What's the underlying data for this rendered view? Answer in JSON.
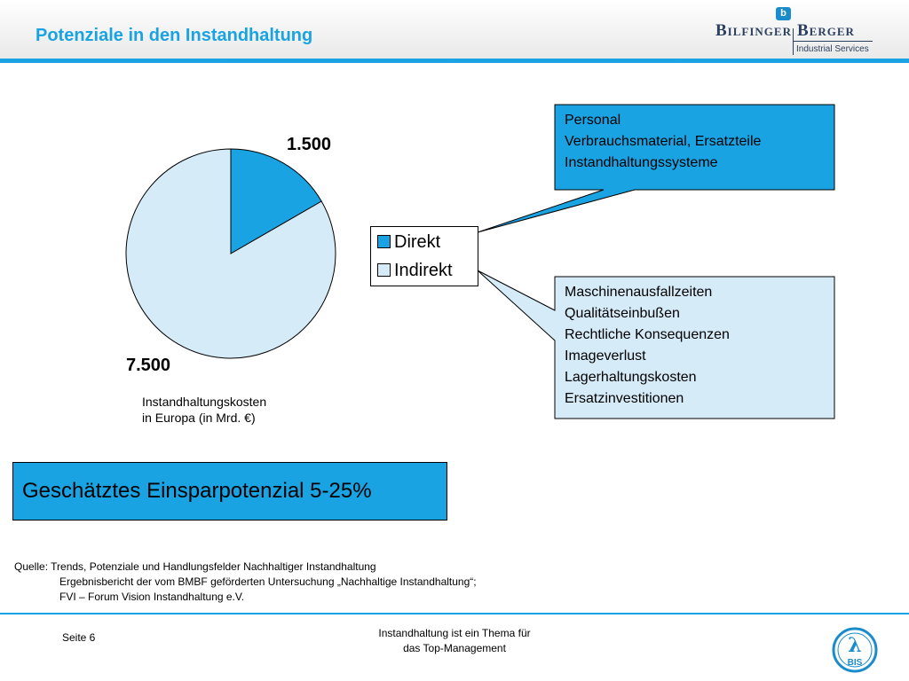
{
  "header": {
    "title": "Potenziale in den Instandhaltung",
    "logo": {
      "word1": "Bilfinger",
      "word2": "Berger",
      "subtitle": "Industrial Services",
      "mark": "b"
    }
  },
  "chart_data": {
    "type": "pie",
    "categories": [
      "Direkt",
      "Indirekt"
    ],
    "values": [
      1500,
      7500
    ],
    "data_labels": [
      "1.500",
      "7.500"
    ],
    "caption_line1": "Instandhaltungskosten",
    "caption_line2": "in Europa (in Mrd. €)",
    "colors": [
      "#1aa3e2",
      "#d6ebf8"
    ],
    "legend_placement": "right"
  },
  "callouts": {
    "direct": {
      "color": "#1aa3e2",
      "lines": [
        "Personal",
        "Verbrauchsmaterial, Ersatzteile",
        "Instandhaltungssysteme"
      ]
    },
    "indirect": {
      "color": "#d6ebf8",
      "lines": [
        "Maschinenausfallzeiten",
        "Qualitätseinbußen",
        "Rechtliche Konsequenzen",
        "Imageverlust",
        "Lagerhaltungskosten",
        "Ersatzinvestitionen"
      ]
    }
  },
  "savings": {
    "text": "Geschätztes Einsparpotenzial 5-25%"
  },
  "source": {
    "line1": "Quelle: Trends, Potenziale und Handlungsfelder Nachhaltiger Instandhaltung",
    "line2": "Ergebnisbericht der vom BMBF geförderten Untersuchung „Nachhaltige Instandhaltung“;",
    "line3": "FVI – Forum Vision Instandhaltung e.V."
  },
  "footer": {
    "page": "Seite 6",
    "center_line1": "Instandhaltung ist ein Thema für",
    "center_line2": "das Top-Management",
    "logo_text": "BIS"
  }
}
